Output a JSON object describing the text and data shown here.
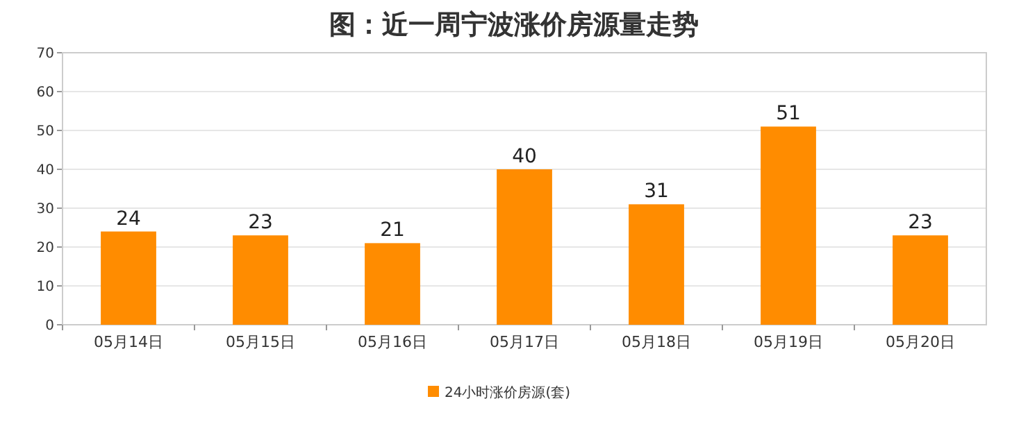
{
  "chart_data": {
    "type": "bar",
    "title": "图：近一周宁波涨价房源量走势",
    "categories": [
      "05月14日",
      "05月15日",
      "05月16日",
      "05月17日",
      "05月18日",
      "05月19日",
      "05月20日"
    ],
    "series": [
      {
        "name": "24小时涨价房源(套)",
        "color": "#ff8c00",
        "values": [
          24,
          23,
          21,
          40,
          31,
          51,
          23
        ]
      }
    ],
    "ylim": [
      0,
      70
    ],
    "yticks": [
      0,
      10,
      20,
      30,
      40,
      50,
      60,
      70
    ],
    "grid": "y",
    "legend": "bottom",
    "data_labels": true
  }
}
